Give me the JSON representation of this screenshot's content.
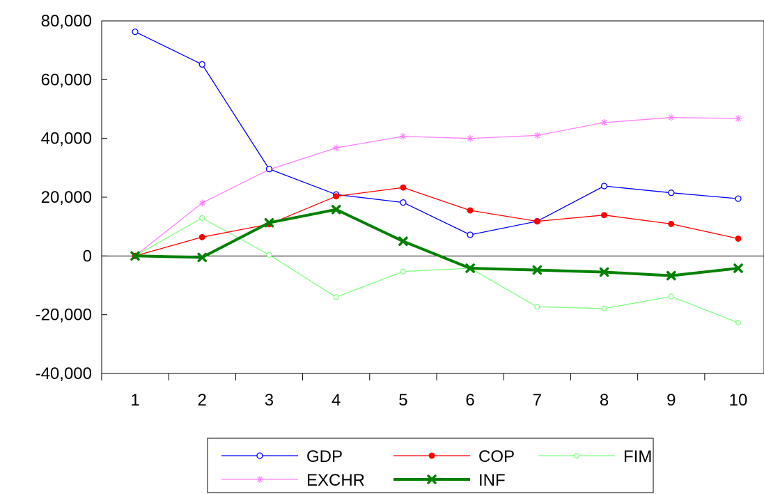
{
  "chart_data": {
    "type": "line",
    "title": "",
    "xlabel": "",
    "ylabel": "",
    "x": [
      1,
      2,
      3,
      4,
      5,
      6,
      7,
      8,
      9,
      10
    ],
    "x_tick_labels": [
      "1",
      "2",
      "3",
      "4",
      "5",
      "6",
      "7",
      "8",
      "9",
      "10"
    ],
    "ylim": [
      -40000,
      80000
    ],
    "y_ticks": [
      -40000,
      -20000,
      0,
      20000,
      40000,
      60000,
      80000
    ],
    "y_tick_labels": [
      "-40,000",
      "-20,000",
      "0",
      "20,000",
      "40,000",
      "60,000",
      "80,000"
    ],
    "zero_line": true,
    "grid": false,
    "legend_position": "bottom",
    "series": [
      {
        "name": "GDP",
        "color": "#0000ff",
        "marker": "open-circle",
        "values": [
          76300,
          65200,
          29600,
          20900,
          18200,
          7200,
          11800,
          23800,
          21500,
          19500
        ]
      },
      {
        "name": "COP",
        "color": "#ff0000",
        "marker": "filled-circle",
        "values": [
          0,
          6400,
          10800,
          20300,
          23300,
          15500,
          11800,
          13900,
          10900,
          5900
        ]
      },
      {
        "name": "FIM",
        "color": "#80ff80",
        "marker": "open-circle-small",
        "values": [
          0,
          12900,
          400,
          -14000,
          -5300,
          -4200,
          -17300,
          -17900,
          -13800,
          -22700
        ]
      },
      {
        "name": "EXCHR",
        "color": "#ff80ff",
        "marker": "asterisk",
        "values": [
          0,
          18000,
          29400,
          36800,
          40700,
          40000,
          41000,
          45400,
          47100,
          46800
        ]
      },
      {
        "name": "INF",
        "color": "#008000",
        "marker": "x-thick",
        "values": [
          0,
          -500,
          11300,
          15800,
          5000,
          -4200,
          -4800,
          -5500,
          -6700,
          -4200
        ]
      }
    ]
  }
}
